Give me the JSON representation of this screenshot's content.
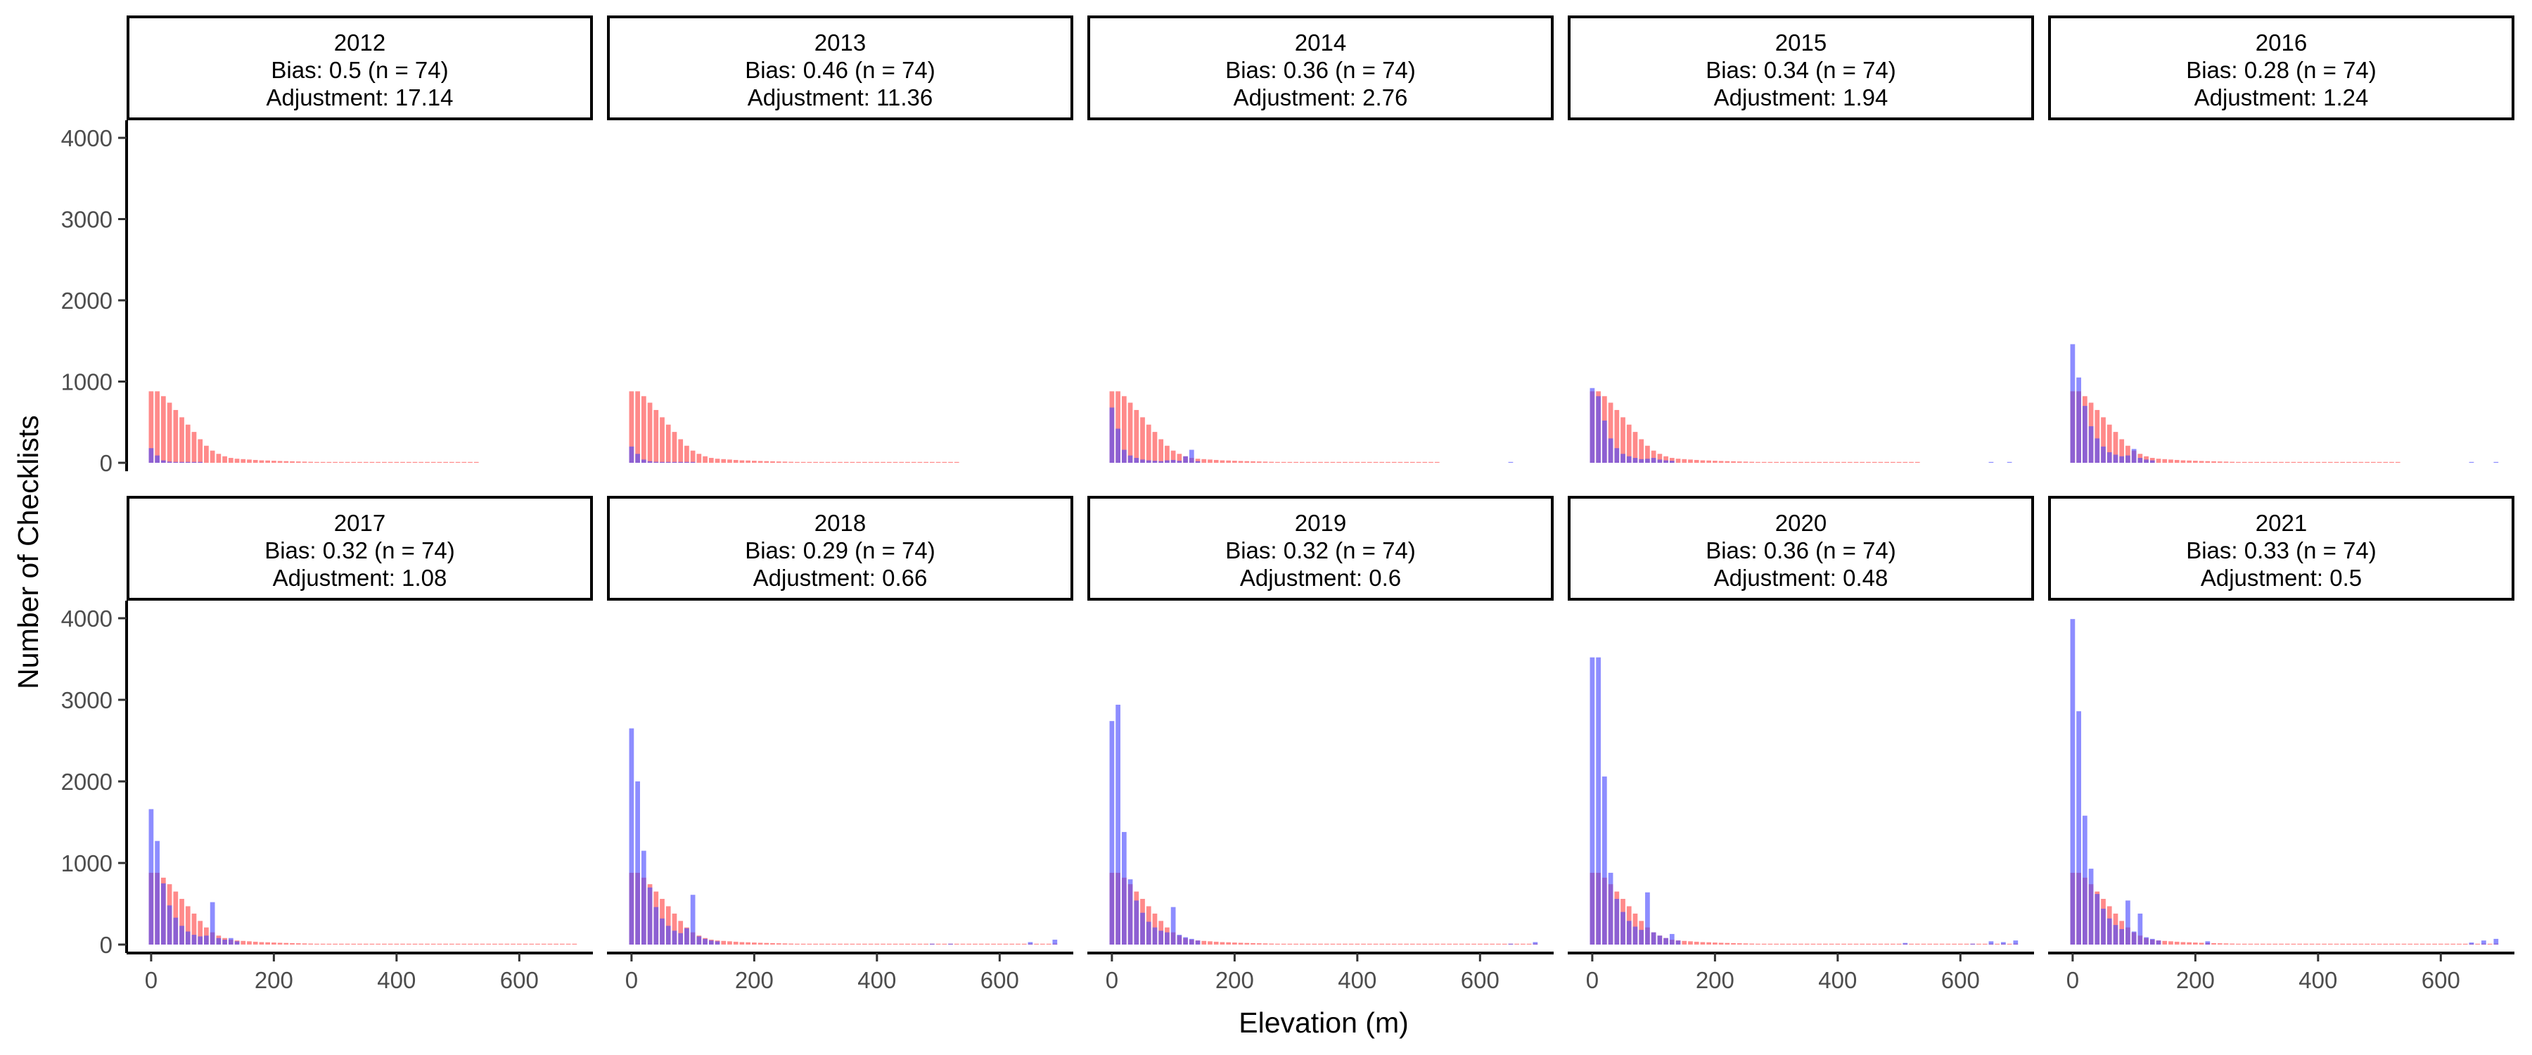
{
  "chart_data": {
    "type": "bar",
    "xlabel": "Elevation (m)",
    "ylabel": "Number of Checklists",
    "xlim": [
      -40,
      720
    ],
    "ylim": [
      0,
      4100
    ],
    "x_ticks": [
      0,
      200,
      400,
      600
    ],
    "y_ticks": [
      0,
      1000,
      2000,
      3000,
      4000
    ],
    "bin_width": 10,
    "grid": false,
    "series_colors": {
      "red": "#ff4b4b",
      "blue": "#4747ff"
    },
    "red_values": [
      880,
      880,
      820,
      740,
      650,
      560,
      470,
      380,
      290,
      210,
      150,
      110,
      80,
      60,
      50,
      45,
      40,
      35,
      30,
      28,
      25,
      22,
      20,
      18,
      16,
      14,
      12,
      10,
      9,
      8,
      7,
      6,
      6,
      5,
      5,
      4,
      4,
      3,
      3,
      3,
      2,
      2,
      2,
      2,
      2,
      1,
      1,
      1,
      1,
      1,
      1,
      1,
      1,
      1,
      1,
      1,
      1,
      1,
      1,
      1,
      1,
      1,
      1,
      1,
      1,
      1,
      1,
      1,
      1,
      1
    ],
    "panels": [
      {
        "year": "2012",
        "bias": "Bias: 0.5 (n = 74)",
        "adjustment": "Adjustment: 17.14",
        "red_bins": 54,
        "blue_bins": {
          "0": 180,
          "10": 90,
          "20": 30,
          "30": 15,
          "40": 10,
          "50": 8,
          "60": 5,
          "70": 3,
          "80": 2
        }
      },
      {
        "year": "2013",
        "bias": "Bias: 0.46 (n = 74)",
        "adjustment": "Adjustment: 11.36",
        "red_bins": 54,
        "blue_bins": {
          "0": 200,
          "10": 110,
          "20": 40,
          "30": 20,
          "40": 12,
          "50": 8,
          "60": 5,
          "70": 4,
          "80": 3,
          "90": 2,
          "100": 2
        }
      },
      {
        "year": "2014",
        "bias": "Bias: 0.36 (n = 74)",
        "adjustment": "Adjustment: 2.76",
        "red_bins": 54,
        "blue_bins": {
          "0": 680,
          "10": 420,
          "20": 160,
          "30": 90,
          "40": 60,
          "50": 40,
          "60": 30,
          "70": 25,
          "80": 20,
          "90": 30,
          "100": 35,
          "110": 25,
          "120": 80,
          "130": 160,
          "140": 20,
          "650": 6
        }
      },
      {
        "year": "2015",
        "bias": "Bias: 0.34 (n = 74)",
        "adjustment": "Adjustment: 1.94",
        "red_bins": 54,
        "blue_bins": {
          "0": 920,
          "10": 820,
          "20": 520,
          "30": 300,
          "40": 180,
          "50": 110,
          "60": 80,
          "70": 60,
          "80": 45,
          "90": 50,
          "100": 60,
          "110": 40,
          "120": 30,
          "130": 25,
          "650": 6,
          "680": 6
        }
      },
      {
        "year": "2016",
        "bias": "Bias: 0.28 (n = 74)",
        "adjustment": "Adjustment: 1.24",
        "red_bins": 54,
        "blue_bins": {
          "0": 1460,
          "10": 1050,
          "20": 700,
          "30": 450,
          "40": 300,
          "50": 200,
          "60": 130,
          "70": 100,
          "80": 80,
          "90": 90,
          "100": 170,
          "110": 60,
          "120": 40,
          "130": 30,
          "650": 8,
          "690": 8
        }
      },
      {
        "year": "2017",
        "bias": "Bias: 0.32 (n = 74)",
        "adjustment": "Adjustment: 1.08",
        "red_bins": 70,
        "blue_bins": {
          "0": 1660,
          "10": 1270,
          "20": 750,
          "30": 480,
          "40": 330,
          "50": 230,
          "60": 160,
          "70": 120,
          "80": 100,
          "90": 110,
          "100": 520,
          "110": 80,
          "120": 60,
          "130": 80,
          "140": 40
        }
      },
      {
        "year": "2018",
        "bias": "Bias: 0.29 (n = 74)",
        "adjustment": "Adjustment: 0.66",
        "red_bins": 70,
        "blue_bins": {
          "0": 2650,
          "10": 2000,
          "20": 1150,
          "30": 700,
          "40": 460,
          "50": 320,
          "60": 230,
          "70": 170,
          "80": 140,
          "90": 200,
          "100": 610,
          "110": 100,
          "120": 70,
          "130": 50,
          "140": 40,
          "490": 8,
          "520": 8,
          "650": 30,
          "690": 60
        }
      },
      {
        "year": "2019",
        "bias": "Bias: 0.32 (n = 74)",
        "adjustment": "Adjustment: 0.6",
        "red_bins": 70,
        "blue_bins": {
          "0": 2740,
          "10": 2940,
          "20": 1380,
          "30": 800,
          "40": 540,
          "50": 390,
          "60": 280,
          "70": 210,
          "80": 170,
          "90": 150,
          "100": 460,
          "110": 120,
          "120": 90,
          "130": 70,
          "140": 50,
          "650": 10,
          "690": 30
        }
      },
      {
        "year": "2020",
        "bias": "Bias: 0.36 (n = 74)",
        "adjustment": "Adjustment: 0.48",
        "red_bins": 70,
        "blue_bins": {
          "0": 3520,
          "10": 3520,
          "20": 2060,
          "30": 880,
          "40": 560,
          "50": 400,
          "60": 290,
          "70": 220,
          "80": 180,
          "90": 640,
          "100": 150,
          "110": 110,
          "120": 80,
          "130": 130,
          "140": 50,
          "510": 20,
          "620": 10,
          "650": 40,
          "670": 30,
          "690": 50
        }
      },
      {
        "year": "2021",
        "bias": "Bias: 0.33 (n = 74)",
        "adjustment": "Adjustment: 0.5",
        "red_bins": 70,
        "blue_bins": {
          "0": 3990,
          "10": 2860,
          "20": 1580,
          "30": 930,
          "40": 620,
          "50": 440,
          "60": 320,
          "70": 240,
          "80": 190,
          "90": 540,
          "100": 160,
          "110": 380,
          "120": 90,
          "130": 70,
          "140": 50,
          "220": 40,
          "650": 25,
          "670": 50,
          "690": 70
        }
      }
    ]
  }
}
